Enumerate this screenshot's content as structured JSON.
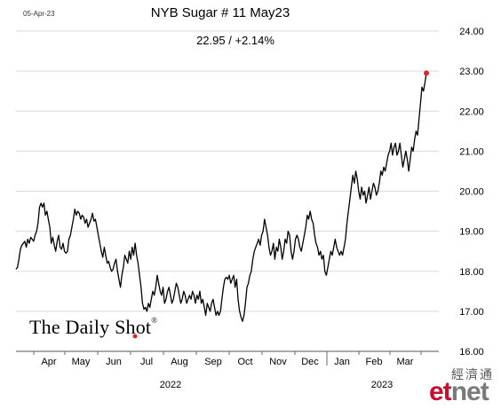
{
  "header": {
    "date": "05-Apr-23",
    "title": "NYB Sugar # 11 May23",
    "subtitle": "22.95  /  +2.14%"
  },
  "branding": {
    "source": "The Daily Shot",
    "registered_mark": "®",
    "watermark_cn": "經濟通",
    "watermark_et": "et",
    "watermark_net": "net"
  },
  "colors": {
    "line": "#000000",
    "grid": "#d9d9d9",
    "marker": "#e8202a",
    "watermark_red": "#c8102e"
  },
  "chart_data": {
    "type": "line",
    "title": "NYB Sugar # 11 May23",
    "subtitle": "22.95  /  +2.14%",
    "ylim": [
      16.0,
      24.0
    ],
    "yticks": [
      "24.00",
      "23.00",
      "22.00",
      "21.00",
      "20.00",
      "19.00",
      "18.00",
      "17.00",
      "16.00"
    ],
    "y_axis_side": "right",
    "grid": true,
    "x_month_labels": [
      "Apr",
      "May",
      "Jun",
      "Jul",
      "Aug",
      "Sep",
      "Oct",
      "Nov",
      "Dec",
      "Jan",
      "Feb",
      "Mar"
    ],
    "x_year_labels": [
      "2022",
      "2023"
    ],
    "last_value": 22.95,
    "series": [
      {
        "values": [
          18.05,
          18.1,
          18.3,
          18.55,
          18.65,
          18.7,
          18.75,
          18.6,
          18.8,
          18.7,
          18.85,
          18.8,
          18.75,
          18.9,
          19.0,
          19.2,
          19.6,
          19.7,
          19.6,
          19.7,
          19.4,
          19.5,
          19.3,
          19.1,
          18.7,
          18.85,
          18.65,
          18.5,
          18.75,
          18.9,
          18.6,
          18.55,
          18.7,
          18.5,
          18.45,
          18.5,
          18.8,
          18.9,
          19.1,
          19.3,
          19.55,
          19.4,
          19.5,
          19.45,
          19.3,
          19.4,
          19.35,
          19.2,
          19.3,
          19.1,
          19.2,
          19.3,
          19.45,
          19.25,
          19.3,
          19.1,
          18.9,
          18.7,
          18.5,
          18.35,
          18.6,
          18.4,
          18.2,
          18.25,
          18.1,
          18.0,
          18.05,
          18.2,
          18.3,
          18.0,
          17.8,
          17.6,
          17.9,
          18.1,
          18.4,
          18.3,
          18.2,
          18.5,
          18.3,
          18.6,
          18.4,
          18.7,
          18.4,
          18.2,
          17.9,
          17.6,
          17.2,
          17.05,
          17.1,
          17.0,
          17.2,
          17.1,
          17.3,
          17.5,
          17.4,
          17.6,
          17.9,
          17.7,
          17.5,
          17.4,
          17.6,
          17.2,
          17.3,
          17.5,
          17.6,
          17.4,
          17.2,
          17.3,
          17.5,
          17.7,
          17.6,
          17.4,
          17.2,
          17.3,
          17.5,
          17.4,
          17.2,
          17.3,
          17.4,
          17.3,
          17.5,
          17.4,
          17.2,
          17.4,
          17.3,
          17.5,
          17.2,
          17.3,
          17.1,
          16.9,
          17.2,
          17.1,
          17.0,
          17.2,
          17.3,
          17.1,
          16.9,
          17.0,
          16.9,
          17.0,
          17.3,
          17.6,
          17.8,
          17.85,
          17.8,
          17.9,
          17.7,
          17.8,
          17.9,
          17.6,
          17.8,
          17.3,
          17.0,
          16.85,
          16.75,
          16.9,
          17.2,
          17.6,
          17.7,
          17.9,
          18.0,
          18.3,
          18.5,
          18.6,
          18.7,
          18.8,
          18.65,
          18.9,
          19.0,
          19.3,
          19.1,
          18.9,
          18.6,
          18.4,
          18.5,
          18.7,
          18.3,
          18.6,
          18.5,
          18.8,
          18.6,
          18.3,
          18.5,
          18.8,
          18.7,
          19.0,
          18.9,
          18.5,
          18.3,
          18.5,
          18.8,
          18.9,
          18.8,
          18.6,
          18.5,
          18.7,
          18.9,
          19.1,
          19.4,
          19.3,
          19.5,
          19.3,
          19.2,
          18.9,
          18.7,
          18.6,
          18.4,
          18.5,
          18.3,
          18.4,
          18.0,
          17.9,
          18.1,
          18.3,
          18.5,
          18.4,
          18.6,
          18.8,
          18.6,
          18.5,
          18.4,
          18.5,
          18.4,
          18.6,
          18.8,
          19.2,
          19.5,
          19.8,
          20.1,
          20.4,
          20.2,
          20.5,
          20.3,
          20.0,
          19.8,
          20.1,
          19.9,
          20.0,
          19.7,
          19.9,
          20.1,
          19.8,
          20.0,
          20.2,
          20.1,
          19.9,
          20.0,
          20.2,
          20.5,
          20.4,
          20.6,
          20.5,
          20.7,
          20.9,
          21.0,
          21.2,
          20.9,
          21.1,
          21.2,
          20.9,
          21.0,
          21.2,
          20.9,
          20.6,
          20.8,
          21.0,
          20.8,
          20.5,
          20.8,
          21.1,
          21.0,
          21.3,
          21.5,
          21.4,
          21.8,
          22.2,
          22.6,
          22.5,
          22.7,
          22.95
        ]
      }
    ]
  }
}
